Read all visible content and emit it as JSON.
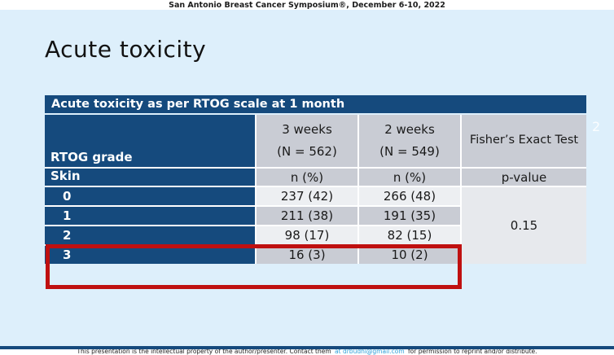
{
  "page": {
    "conference_header": "San Antonio Breast Cancer Symposium®, December 6-10, 2022",
    "slide_title": "Acute toxicity",
    "slide_number": "2"
  },
  "table": {
    "title": "Acute toxicity as per RTOG scale at 1 month",
    "col_group_label": "RTOG grade",
    "row_group_label": "Skin",
    "columns": [
      {
        "label": "3 weeks",
        "sublabel": "(N = 562)",
        "unit": "n (%)"
      },
      {
        "label": "2 weeks",
        "sublabel": "(N = 549)",
        "unit": "n (%)"
      },
      {
        "label": "Fisher’s Exact Test",
        "unit": "p-value"
      }
    ],
    "rows": [
      {
        "grade": "0",
        "three_weeks": "237 (42)",
        "two_weeks": "266 (48)"
      },
      {
        "grade": "1",
        "three_weeks": "211 (38)",
        "two_weeks": "191 (35)"
      },
      {
        "grade": "2",
        "three_weeks": "98 (17)",
        "two_weeks": "82 (15)"
      },
      {
        "grade": "3",
        "three_weeks": "16 (3)",
        "two_weeks": "10 (2)"
      }
    ],
    "p_value": "0.15"
  },
  "chart_data": {
    "type": "table",
    "title": "Acute toxicity as per RTOG scale at 1 month",
    "row_header": "RTOG grade (Skin)",
    "columns": [
      "3 weeks (N = 562) n (%)",
      "2 weeks (N = 549) n (%)",
      "Fisher's Exact Test p-value"
    ],
    "rows": [
      [
        "0",
        "237 (42)",
        "266 (48)",
        ""
      ],
      [
        "1",
        "211 (38)",
        "191 (35)",
        ""
      ],
      [
        "2",
        "98 (17)",
        "82 (15)",
        ""
      ],
      [
        "3",
        "16 (3)",
        "10 (2)",
        ""
      ]
    ],
    "p_value": "0.15",
    "annotation": "red rectangle highlighting grades 2 and 3 rows"
  },
  "footer": {
    "text_before_link": "This presentation is the intellectual property of the author/presenter. Contact them",
    "link": "at  drbudhi@gmail.com",
    "text_after_link": "for permission to reprint and/or distribute."
  },
  "colors": {
    "slide_background": "#ddeffb",
    "table_header_blue": "#154a7d",
    "table_gray": "#c9ccd4",
    "table_light_row": "#edeff2",
    "annotation_red": "#bf1010",
    "link_blue": "#2d9fd8"
  }
}
